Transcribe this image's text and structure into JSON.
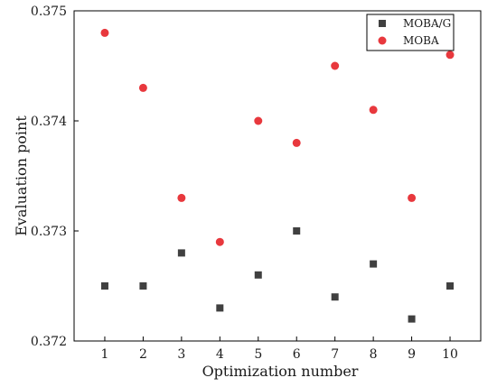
{
  "chart_data": {
    "type": "scatter",
    "title": "",
    "xlabel": "Optimization number",
    "ylabel": "Evaluation point",
    "x": [
      1,
      2,
      3,
      4,
      5,
      6,
      7,
      8,
      9,
      10
    ],
    "xlim": [
      0.2,
      10.8
    ],
    "ylim": [
      0.372,
      0.375
    ],
    "xticks": [
      "1",
      "2",
      "3",
      "4",
      "5",
      "6",
      "7",
      "8",
      "9",
      "10"
    ],
    "yticks": [
      "0.372",
      "0.373",
      "0.374",
      "0.375"
    ],
    "grid": false,
    "legend_position": "top-right",
    "series": [
      {
        "name": "MOBA/G",
        "marker": "square",
        "color": "#404040",
        "values": [
          0.3725,
          0.3725,
          0.3728,
          0.3723,
          0.3726,
          0.373,
          0.3724,
          0.3727,
          0.3722,
          0.3725
        ]
      },
      {
        "name": "MOBA",
        "marker": "circle",
        "color": "#e8383d",
        "values": [
          0.3748,
          0.3743,
          0.3733,
          0.3729,
          0.374,
          0.3738,
          0.3745,
          0.3741,
          0.3733,
          0.3746
        ]
      }
    ]
  }
}
